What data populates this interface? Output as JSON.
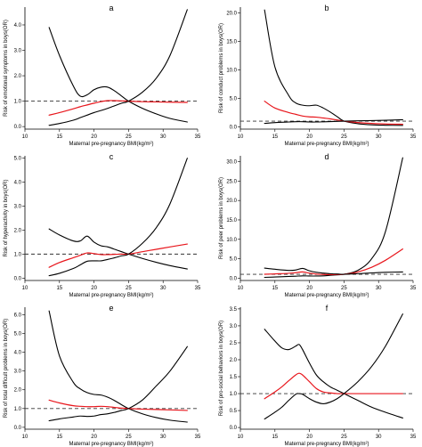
{
  "chart_data": [
    {
      "type": "line",
      "letter": "a",
      "xlabel": "Maternal pre-pregnancy BMI(kg/m²)",
      "ylabel": "Risk of emotional symptoms in boys(OR)",
      "xlim": [
        10,
        35
      ],
      "ylim": [
        -0.1,
        4.7
      ],
      "xticks": [
        10,
        15,
        20,
        25,
        30,
        35
      ],
      "yticks": [
        0.0,
        1.0,
        2.0,
        3.0,
        4.0
      ],
      "ytick_labels": [
        "0.0",
        "1.0",
        "2.0",
        "3.0",
        "4.0"
      ],
      "reference_line": 1.0,
      "x": [
        13.5,
        15,
        17,
        18,
        19,
        20,
        21,
        22,
        23,
        24,
        25,
        27,
        29,
        31,
        33.5
      ],
      "series": [
        {
          "role": "upper",
          "color": "#000000",
          "values": [
            3.9,
            2.8,
            1.6,
            1.2,
            1.25,
            1.45,
            1.55,
            1.55,
            1.4,
            1.2,
            1.0,
            0.72,
            0.5,
            0.32,
            0.18
          ]
        },
        {
          "role": "estimate",
          "color": "#e8161c",
          "values": [
            0.45,
            0.55,
            0.7,
            0.78,
            0.85,
            0.92,
            0.98,
            1.02,
            1.02,
            1.01,
            1.0,
            0.98,
            0.97,
            0.96,
            0.95
          ]
        },
        {
          "role": "lower",
          "color": "#000000",
          "values": [
            0.05,
            0.12,
            0.25,
            0.35,
            0.45,
            0.55,
            0.63,
            0.72,
            0.82,
            0.92,
            1.0,
            1.35,
            1.9,
            2.8,
            4.6
          ]
        }
      ]
    },
    {
      "type": "line",
      "letter": "b",
      "xlabel": "Maternal pre-pregnancy BMI(kg/m²)",
      "ylabel": "Risk of conduct problems in boys(OR)",
      "xlim": [
        10,
        35
      ],
      "ylim": [
        -0.4,
        21
      ],
      "xticks": [
        10,
        15,
        20,
        25,
        30,
        35
      ],
      "yticks": [
        0,
        5,
        10,
        15,
        20
      ],
      "ytick_labels": [
        "0.0",
        "5.0",
        "10.0",
        "15.0",
        "20.0"
      ],
      "reference_line": 1.0,
      "x": [
        13.5,
        15,
        17,
        18,
        19,
        20,
        21,
        22,
        23,
        24,
        25,
        27,
        29,
        31,
        33.5
      ],
      "series": [
        {
          "role": "upper",
          "color": "#000000",
          "values": [
            20.5,
            10.5,
            5.5,
            4.2,
            3.8,
            3.7,
            3.8,
            3.3,
            2.6,
            1.8,
            1.0,
            0.55,
            0.35,
            0.28,
            0.25
          ]
        },
        {
          "role": "estimate",
          "color": "#e8161c",
          "values": [
            4.5,
            3.3,
            2.5,
            2.2,
            1.9,
            1.75,
            1.7,
            1.55,
            1.4,
            1.2,
            1.0,
            0.75,
            0.6,
            0.5,
            0.45
          ]
        },
        {
          "role": "lower",
          "color": "#000000",
          "values": [
            0.6,
            0.75,
            0.85,
            0.9,
            0.9,
            0.85,
            0.85,
            0.88,
            0.92,
            0.96,
            1.0,
            1.05,
            1.1,
            1.15,
            1.25
          ]
        }
      ]
    },
    {
      "type": "line",
      "letter": "c",
      "xlabel": "Maternal pre-pregnancy BMI(kg/m²)",
      "ylabel": "Risk of hyperactivity in boys(OR)",
      "xlim": [
        10,
        35
      ],
      "ylim": [
        -0.1,
        5.1
      ],
      "xticks": [
        10,
        15,
        20,
        25,
        30,
        35
      ],
      "yticks": [
        0.0,
        1.0,
        2.0,
        3.0,
        4.0,
        5.0
      ],
      "ytick_labels": [
        "0.0",
        "1.0",
        "2.0",
        "3.0",
        "4.0",
        "5.0"
      ],
      "reference_line": 1.0,
      "x": [
        13.5,
        15,
        17,
        18,
        19,
        20,
        21,
        22,
        23,
        24,
        25,
        27,
        29,
        31,
        33.5
      ],
      "series": [
        {
          "role": "upper",
          "color": "#000000",
          "values": [
            2.05,
            1.8,
            1.55,
            1.55,
            1.75,
            1.5,
            1.35,
            1.3,
            1.2,
            1.1,
            1.0,
            0.82,
            0.66,
            0.52,
            0.38
          ]
        },
        {
          "role": "estimate",
          "color": "#e8161c",
          "values": [
            0.45,
            0.65,
            0.85,
            0.95,
            1.05,
            1.02,
            0.98,
            0.98,
            0.99,
            1.0,
            1.0,
            1.1,
            1.2,
            1.3,
            1.42
          ]
        },
        {
          "role": "lower",
          "color": "#000000",
          "values": [
            0.1,
            0.2,
            0.4,
            0.55,
            0.7,
            0.72,
            0.72,
            0.78,
            0.85,
            0.93,
            1.0,
            1.45,
            2.1,
            3.1,
            5.0
          ]
        }
      ]
    },
    {
      "type": "line",
      "letter": "d",
      "xlabel": "Maternal pre-pregnancy BMI(kg/m²)",
      "ylabel": "Risk of peer problems in boys(OR)",
      "xlim": [
        10,
        35
      ],
      "ylim": [
        -0.6,
        31.5
      ],
      "xticks": [
        10,
        15,
        20,
        25,
        30,
        35
      ],
      "yticks": [
        0,
        5,
        10,
        15,
        20,
        25,
        30
      ],
      "ytick_labels": [
        "0.0",
        "5.0",
        "10.0",
        "15.0",
        "20.0",
        "25.0",
        "30.0"
      ],
      "reference_line": 1.0,
      "x": [
        13.5,
        15,
        17,
        18,
        19,
        20,
        21,
        22,
        23,
        24,
        25,
        27,
        29,
        31,
        33.5
      ],
      "series": [
        {
          "role": "upper",
          "color": "#000000",
          "values": [
            0.2,
            0.3,
            0.45,
            0.5,
            0.6,
            0.55,
            0.55,
            0.6,
            0.72,
            0.85,
            1.0,
            2.0,
            5.0,
            12.0,
            31.0
          ]
        },
        {
          "role": "estimate",
          "color": "#e8161c",
          "values": [
            1.0,
            1.1,
            1.25,
            1.4,
            1.6,
            1.3,
            1.05,
            0.95,
            0.92,
            0.95,
            1.0,
            1.6,
            2.8,
            4.6,
            7.5
          ]
        },
        {
          "role": "lower",
          "color": "#000000",
          "values": [
            2.6,
            2.3,
            2.0,
            2.1,
            2.5,
            1.9,
            1.5,
            1.3,
            1.15,
            1.07,
            1.0,
            1.15,
            1.35,
            1.5,
            1.6
          ]
        }
      ]
    },
    {
      "type": "line",
      "letter": "e",
      "xlabel": "Maternal pre-pregnancy BMI(kg/m²)",
      "ylabel": "Risk of total difficult problems in boys(OR)",
      "xlim": [
        10,
        35
      ],
      "ylim": [
        -0.1,
        6.4
      ],
      "xticks": [
        10,
        15,
        20,
        25,
        30,
        35
      ],
      "yticks": [
        0.0,
        1.0,
        2.0,
        3.0,
        4.0,
        5.0,
        6.0
      ],
      "ytick_labels": [
        "0.0",
        "1.0",
        "2.0",
        "3.0",
        "4.0",
        "5.0",
        "6.0"
      ],
      "reference_line": 1.0,
      "x": [
        13.5,
        15,
        17,
        18,
        19,
        20,
        21,
        22,
        23,
        24,
        25,
        27,
        29,
        31,
        33.5
      ],
      "series": [
        {
          "role": "upper",
          "color": "#000000",
          "values": [
            6.2,
            3.8,
            2.4,
            2.05,
            1.85,
            1.75,
            1.72,
            1.6,
            1.42,
            1.2,
            1.0,
            0.72,
            0.52,
            0.38,
            0.28
          ]
        },
        {
          "role": "estimate",
          "color": "#e8161c",
          "values": [
            1.45,
            1.3,
            1.15,
            1.12,
            1.1,
            1.1,
            1.12,
            1.1,
            1.06,
            1.02,
            1.0,
            0.97,
            0.95,
            0.93,
            0.9
          ]
        },
        {
          "role": "lower",
          "color": "#000000",
          "values": [
            0.35,
            0.45,
            0.55,
            0.6,
            0.58,
            0.6,
            0.68,
            0.72,
            0.8,
            0.9,
            1.0,
            1.45,
            2.2,
            3.0,
            4.3
          ]
        }
      ]
    },
    {
      "type": "line",
      "letter": "f",
      "xlabel": "Maternal pre-pregnancy BMI(kg/m²)",
      "ylabel": "Risk of pro-social behaviors in boys(OR)",
      "xlim": [
        10,
        35
      ],
      "ylim": [
        -0.05,
        3.55
      ],
      "xticks": [
        10,
        15,
        20,
        25,
        30,
        35
      ],
      "yticks": [
        0.0,
        0.5,
        1.0,
        1.5,
        2.0,
        2.5,
        3.0,
        3.5
      ],
      "ytick_labels": [
        "0.0",
        "0.5",
        "1.0",
        "1.5",
        "2.0",
        "2.5",
        "3.0",
        "3.5"
      ],
      "reference_line": 1.0,
      "x": [
        13.5,
        15,
        16,
        17,
        18,
        18.5,
        19,
        20,
        21,
        22,
        23,
        24,
        25,
        27,
        29,
        31,
        33.5
      ],
      "series": [
        {
          "role": "upper",
          "color": "#000000",
          "values": [
            2.9,
            2.55,
            2.35,
            2.3,
            2.4,
            2.45,
            2.3,
            1.9,
            1.55,
            1.35,
            1.2,
            1.1,
            1.0,
            0.8,
            0.6,
            0.45,
            0.28
          ]
        },
        {
          "role": "estimate",
          "color": "#e8161c",
          "values": [
            0.85,
            1.05,
            1.2,
            1.38,
            1.55,
            1.6,
            1.55,
            1.35,
            1.15,
            1.05,
            1.02,
            1.0,
            1.0,
            1.0,
            1.0,
            1.0,
            1.0
          ]
        },
        {
          "role": "lower",
          "color": "#000000",
          "values": [
            0.25,
            0.45,
            0.6,
            0.8,
            0.98,
            1.0,
            0.98,
            0.85,
            0.75,
            0.7,
            0.75,
            0.85,
            1.0,
            1.35,
            1.8,
            2.4,
            3.35
          ]
        }
      ]
    }
  ]
}
